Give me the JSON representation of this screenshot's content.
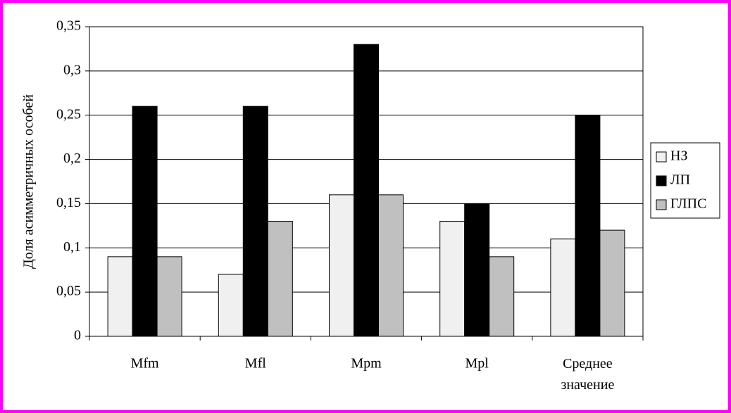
{
  "chart_data": {
    "type": "bar",
    "y_label": "Доля асимметричных особей",
    "categories": [
      "Mfm",
      "Mfl",
      "Mpm",
      "Mpl",
      "Среднее значение"
    ],
    "series": [
      {
        "name": "НЗ",
        "color": "#f0f0f0",
        "values": [
          0.09,
          0.07,
          0.16,
          0.13,
          0.11
        ]
      },
      {
        "name": "ЛП",
        "color": "#000000",
        "values": [
          0.26,
          0.26,
          0.33,
          0.15,
          0.25
        ]
      },
      {
        "name": "ГЛПС",
        "color": "#c0c0c0",
        "values": [
          0.09,
          0.13,
          0.16,
          0.09,
          0.12
        ]
      }
    ],
    "ylim": [
      0,
      0.35
    ],
    "yticks": [
      0,
      {
        "value": 0.05,
        "label": "0,05"
      },
      {
        "value": 0.1,
        "label": "0,1"
      },
      {
        "value": 0.15,
        "label": "0,15"
      },
      {
        "value": 0.2,
        "label": "0,2"
      },
      {
        "value": 0.25,
        "label": "0,25"
      },
      {
        "value": 0.3,
        "label": "0,3"
      },
      {
        "value": 0.35,
        "label": "0,35"
      }
    ],
    "grid": true,
    "legend": "right"
  }
}
